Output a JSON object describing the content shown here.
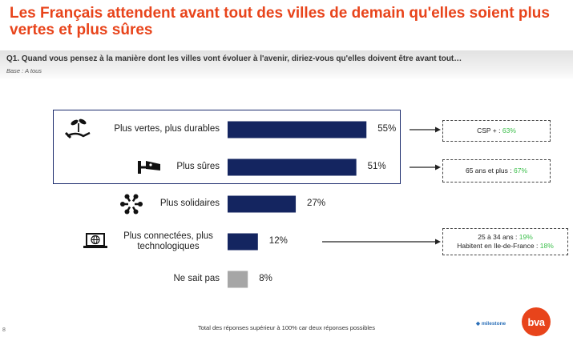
{
  "header": {
    "title": "Les Français attendent avant tout des villes de demain qu'elles soient plus vertes et plus sûres",
    "question": "Q1. Quand vous pensez à la manière dont les villes vont évoluer à l'avenir, diriez-vous qu'elles doivent être avant tout…",
    "base": "Base : A tous"
  },
  "chart_data": {
    "type": "bar",
    "orientation": "horizontal",
    "categories": [
      "Plus vertes, plus durables",
      "Plus sûres",
      "Plus solidaires",
      "Plus connectées, plus technologiques",
      "Ne sait pas"
    ],
    "values": [
      55,
      51,
      27,
      12,
      8
    ],
    "value_labels": [
      "55%",
      "51%",
      "27%",
      "12%",
      "8%"
    ],
    "unit": "%",
    "colors": [
      "#142560",
      "#142560",
      "#142560",
      "#142560",
      "#a6a6a6"
    ],
    "icons": [
      "plant-hand-icon",
      "security-camera-icon",
      "people-circle-icon",
      "laptop-globe-icon",
      ""
    ],
    "highlight_group": [
      0,
      1
    ],
    "callouts": [
      {
        "row": 0,
        "lines": [
          {
            "text": "CSP + : ",
            "pct": "63%"
          }
        ]
      },
      {
        "row": 1,
        "lines": [
          {
            "text": "65 ans et plus : ",
            "pct": "67%"
          }
        ]
      },
      {
        "row": 3,
        "lines": [
          {
            "text": "25 à 34 ans : ",
            "pct": "19%"
          },
          {
            "text": "Habitent en Ile-de-France : ",
            "pct": "18%"
          }
        ]
      }
    ]
  },
  "footer": {
    "note": "Total des réponses supérieur à 100% car deux réponses possibles",
    "page_number": "8",
    "partner_logo": "milestone",
    "brand_logo": "bva"
  }
}
